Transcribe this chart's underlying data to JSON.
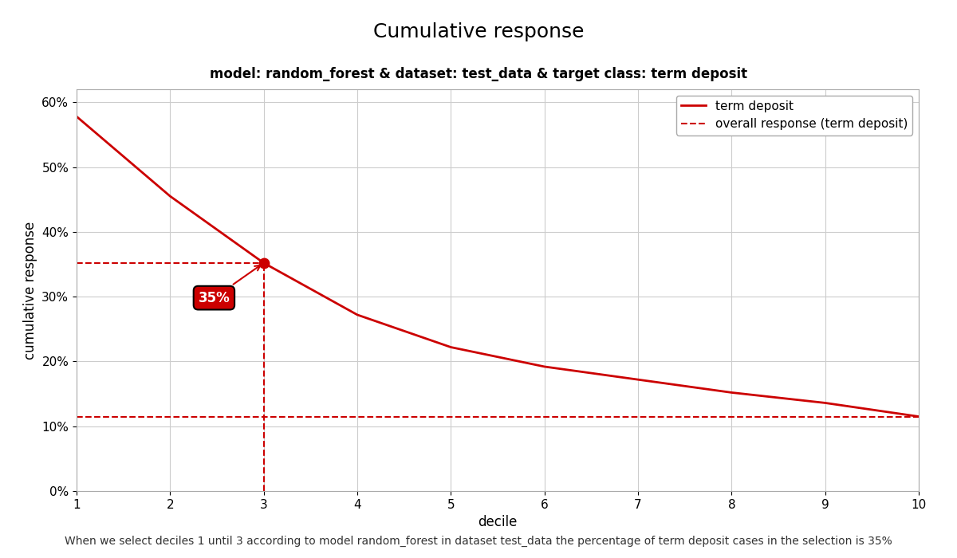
{
  "title": "Cumulative response",
  "subtitle": "model: random_forest & dataset: test_data & target class: term deposit",
  "xlabel": "decile",
  "ylabel": "cumulative response",
  "footer": "When we select deciles 1 until 3 according to model random_forest in dataset test_data the percentage of term deposit cases in the selection is 35%",
  "x_values": [
    1,
    2,
    3,
    4,
    5,
    6,
    7,
    8,
    9,
    10
  ],
  "y_values": [
    0.578,
    0.455,
    0.352,
    0.272,
    0.222,
    0.192,
    0.172,
    0.152,
    0.136,
    0.115
  ],
  "overall_response": 0.115,
  "highlight_decile": 3,
  "highlight_value": 0.352,
  "annotation_text": "35%",
  "line_color": "#cc0000",
  "dashed_color": "#cc0000",
  "background_color": "#ffffff",
  "grid_color": "#cccccc",
  "xlim": [
    1,
    10
  ],
  "ylim": [
    0.0,
    0.62
  ],
  "yticks": [
    0.0,
    0.1,
    0.2,
    0.3,
    0.4,
    0.5,
    0.6
  ],
  "ytick_labels": [
    "0%",
    "10%",
    "20%",
    "30%",
    "40%",
    "50%",
    "60%"
  ],
  "title_fontsize": 18,
  "subtitle_fontsize": 12,
  "axis_label_fontsize": 12,
  "tick_fontsize": 11,
  "legend_fontsize": 11,
  "footer_fontsize": 10
}
